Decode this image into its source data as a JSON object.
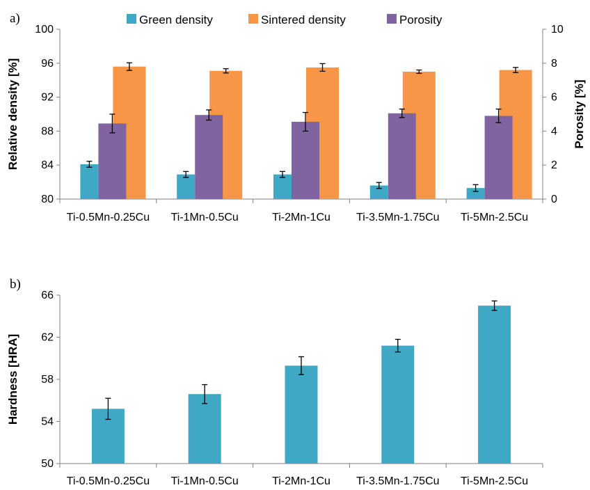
{
  "colors": {
    "green_density": "#3fa9c5",
    "sintered_density": "#f79646",
    "porosity": "#8064a2",
    "hardness": "#3fa9c5",
    "axis": "#7f7f7f"
  },
  "chart_data": [
    {
      "panel_label": "a)",
      "type": "bar",
      "categories": [
        "Ti-0.5Mn-0.25Cu",
        "Ti-1Mn-0.5Cu",
        "Ti-2Mn-1Cu",
        "Ti-3.5Mn-1.75Cu",
        "Ti-5Mn-2.5Cu"
      ],
      "ylabel": "Relative density [%]",
      "ylabel_right": "Porosity [%]",
      "ylim": [
        80,
        100
      ],
      "yticks": [
        "80",
        "84",
        "88",
        "92",
        "96",
        "100"
      ],
      "ylim_right": [
        0,
        10
      ],
      "yticks_right": [
        "0",
        "2",
        "4",
        "6",
        "8",
        "10"
      ],
      "legend_position": "top",
      "series": [
        {
          "name": "Green density",
          "axis": "left",
          "values": [
            84.1,
            82.9,
            82.9,
            81.6,
            81.3
          ],
          "errors": [
            0.35,
            0.35,
            0.35,
            0.35,
            0.4
          ]
        },
        {
          "name": "Sintered density",
          "axis": "left",
          "values": [
            95.6,
            95.1,
            95.5,
            95.0,
            95.2
          ],
          "errors": [
            0.45,
            0.25,
            0.45,
            0.2,
            0.3
          ]
        },
        {
          "name": "Porosity",
          "axis": "right",
          "values": [
            4.45,
            4.95,
            4.55,
            5.05,
            4.9
          ],
          "errors": [
            0.55,
            0.3,
            0.55,
            0.25,
            0.4
          ]
        }
      ]
    },
    {
      "panel_label": "b)",
      "type": "bar",
      "categories": [
        "Ti-0.5Mn-0.25Cu",
        "Ti-1Mn-0.5Cu",
        "Ti-2Mn-1Cu",
        "Ti-3.5Mn-1.75Cu",
        "Ti-5Mn-2.5Cu"
      ],
      "ylabel": "Hardness [HRA]",
      "ylim": [
        50,
        66
      ],
      "yticks": [
        "50",
        "54",
        "58",
        "62",
        "66"
      ],
      "series": [
        {
          "axis": "left",
          "values": [
            55.2,
            56.6,
            59.3,
            61.2,
            65.0
          ],
          "errors": [
            1.0,
            0.9,
            0.85,
            0.6,
            0.45
          ]
        }
      ]
    }
  ]
}
